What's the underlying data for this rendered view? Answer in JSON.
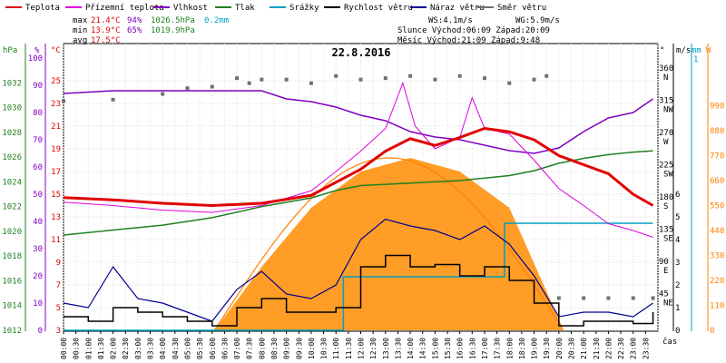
{
  "chart_data": {
    "type": "line",
    "title": "22.8.2016",
    "legend": [
      {
        "label": "Teplota",
        "color": "#e00000"
      },
      {
        "label": "Přízemní teplota",
        "color": "#e000e0"
      },
      {
        "label": "Vlhkost",
        "color": "#8000c0"
      },
      {
        "label": "Tlak",
        "color": "#208020"
      },
      {
        "label": "Srážky",
        "color": "#00a0c0"
      },
      {
        "label": "Rychlost větru",
        "color": "#000000"
      },
      {
        "label": "Náraz větru",
        "color": "#000090"
      },
      {
        "label": "Směr větru",
        "color": "#707070"
      }
    ],
    "stats": {
      "max_label": "max",
      "max_temp": "21.4°C",
      "max_hum": "94%",
      "max_press": "1026.5hPa",
      "rain": "0.2mm",
      "min_label": "min",
      "min_temp": "13.9°C",
      "min_hum": "65%",
      "min_press": "1019.9hPa",
      "avg_label": "avg",
      "avg_temp": "17.5°C"
    },
    "info": {
      "ws": "WS:4.1m/s",
      "wg": "WG:5.9m/s",
      "sun": "Slunce Východ:06:09  Západ:20:09",
      "moon": "Měsíc  Východ:21:09  Západ:9:48"
    },
    "axis_units": {
      "hpa": "hPa",
      "pct": "%",
      "degc": "°C",
      "deg": "°",
      "mm": "mm",
      "ms": "m/s",
      "w": "W",
      "time": "čas"
    },
    "axes": {
      "hpa": {
        "range": [
          1012,
          1034
        ],
        "ticks": [
          1012,
          1014,
          1016,
          1018,
          1020,
          1022,
          1024,
          1026,
          1028,
          1030,
          1032
        ]
      },
      "pct": {
        "range": [
          0,
          100
        ],
        "ticks": [
          0,
          5,
          10,
          15,
          20,
          25,
          30,
          35,
          40,
          45,
          50,
          55,
          60,
          65,
          70,
          75,
          80,
          85,
          90,
          95,
          100
        ]
      },
      "degc": {
        "range": [
          3,
          27
        ],
        "ticks": [
          3,
          5,
          7,
          9,
          11,
          13,
          15,
          17,
          19,
          21,
          23,
          25
        ]
      },
      "deg": {
        "range": [
          0,
          380
        ],
        "ticks": [
          "45 NE",
          "90 E",
          "135 SE",
          "180 S",
          "225 SW",
          "270 W",
          "315 NW",
          "360 N"
        ]
      },
      "mm": {
        "ticks": [
          "1"
        ]
      },
      "ms": {
        "range": [
          0,
          6
        ],
        "ticks": [
          0,
          1,
          2,
          3,
          4,
          5,
          6
        ]
      },
      "w": {
        "range": [
          0,
          1100
        ],
        "ticks": [
          0,
          110,
          220,
          330,
          440,
          550,
          660,
          770,
          880,
          990
        ]
      }
    },
    "x_ticks": [
      "00:00",
      "00:30",
      "01:00",
      "01:30",
      "02:00",
      "02:30",
      "03:00",
      "03:30",
      "04:00",
      "04:30",
      "05:00",
      "05:30",
      "06:00",
      "06:30",
      "07:00",
      "07:30",
      "08:00",
      "08:30",
      "09:00",
      "09:30",
      "10:00",
      "10:30",
      "11:00",
      "11:30",
      "12:00",
      "12:30",
      "13:00",
      "13:30",
      "14:00",
      "14:30",
      "15:00",
      "15:30",
      "16:00",
      "16:30",
      "17:00",
      "17:30",
      "18:00",
      "18:30",
      "19:00",
      "19:30",
      "20:00",
      "20:30",
      "21:00",
      "21:30",
      "22:00",
      "22:30",
      "23:00",
      "23:30"
    ],
    "series": [
      {
        "name": "Teplota",
        "color": "#e00000",
        "unit": "°C",
        "x": [
          0,
          2,
          4,
          6,
          8,
          10,
          12,
          13,
          14,
          15,
          16,
          17,
          18,
          19,
          20,
          21,
          22,
          23,
          23.8
        ],
        "values": [
          14.7,
          14.5,
          14.2,
          14.0,
          14.2,
          14.9,
          17.2,
          18.8,
          19.9,
          19.3,
          20.0,
          20.8,
          20.5,
          19.8,
          18.4,
          17.6,
          16.8,
          15.0,
          14.0
        ]
      },
      {
        "name": "Přízemní teplota",
        "color": "#e000e0",
        "unit": "°C",
        "x": [
          0,
          2,
          4,
          6,
          8,
          10,
          11,
          12,
          13,
          13.7,
          14.2,
          15,
          16,
          16.5,
          17,
          18,
          19,
          20,
          21,
          22,
          23,
          23.8
        ],
        "values": [
          14.3,
          14.0,
          13.6,
          13.4,
          14.0,
          15.3,
          17.0,
          18.8,
          20.8,
          24.8,
          21.0,
          19.0,
          20.0,
          23.5,
          20.8,
          20.3,
          18.0,
          15.5,
          14.0,
          12.4,
          11.8,
          11.2
        ]
      },
      {
        "name": "Vlhkost",
        "color": "#8000c0",
        "unit": "%",
        "x": [
          0,
          2,
          4,
          6,
          8,
          9,
          10,
          11,
          12,
          13,
          14,
          15,
          16,
          17,
          18,
          19,
          20,
          21,
          22,
          23,
          23.8
        ],
        "values": [
          87,
          88,
          88,
          88,
          88,
          85,
          84,
          82,
          79,
          77,
          73,
          71,
          70,
          68,
          66,
          65,
          67,
          73,
          78,
          80,
          85
        ]
      },
      {
        "name": "Tlak",
        "color": "#208020",
        "unit": "hPa",
        "x": [
          0,
          2,
          4,
          6,
          8,
          10,
          11,
          12,
          13,
          14,
          15,
          16,
          17,
          18,
          19,
          20,
          21,
          22,
          23,
          23.8
        ],
        "values": [
          1019.7,
          1020.1,
          1020.5,
          1021.1,
          1022.0,
          1022.7,
          1023.3,
          1023.7,
          1023.8,
          1023.9,
          1024.0,
          1024.1,
          1024.3,
          1024.5,
          1024.9,
          1025.5,
          1025.9,
          1026.2,
          1026.4,
          1026.5
        ]
      },
      {
        "name": "Srážky",
        "color": "#00a0c0",
        "unit": "mm",
        "x": [
          0,
          11.3,
          11.3,
          17.8,
          17.8,
          23.8
        ],
        "values": [
          0,
          0,
          0.1,
          0.1,
          0.2,
          0.2
        ]
      },
      {
        "name": "Sluneční záření",
        "color": "#ff7f00",
        "unit": "W",
        "x": [
          6.1,
          8,
          10,
          12,
          14,
          16,
          18,
          20.2
        ],
        "values": [
          0,
          280,
          540,
          700,
          760,
          700,
          540,
          0
        ]
      },
      {
        "name": "Rychlost větru",
        "color": "#000000",
        "unit": "m/s",
        "x": [
          0,
          1,
          2,
          3,
          4,
          5,
          6,
          7,
          8,
          9,
          10,
          11,
          12,
          13,
          14,
          15,
          16,
          17,
          18,
          19,
          20,
          21,
          22,
          23,
          23.8
        ],
        "values": [
          0.6,
          0.4,
          1.0,
          0.8,
          0.6,
          0.4,
          0.2,
          1.0,
          1.4,
          0.8,
          0.8,
          1.0,
          2.8,
          3.3,
          2.8,
          2.9,
          2.4,
          2.8,
          2.2,
          1.2,
          0.2,
          0.4,
          0.4,
          0.3,
          0.8
        ]
      },
      {
        "name": "Náraz větru",
        "color": "#000090",
        "unit": "m/s",
        "x": [
          0,
          1,
          2,
          3,
          4,
          5,
          6,
          7,
          8,
          9,
          10,
          11,
          12,
          13,
          14,
          15,
          16,
          17,
          18,
          19,
          20,
          21,
          22,
          23,
          23.8
        ],
        "values": [
          1.2,
          1.0,
          2.8,
          1.4,
          1.2,
          0.8,
          0.4,
          1.8,
          2.6,
          1.6,
          1.4,
          2.0,
          4.0,
          4.9,
          4.6,
          4.4,
          4.0,
          4.6,
          3.8,
          2.4,
          0.6,
          0.8,
          0.8,
          0.6,
          1.2
        ]
      },
      {
        "name": "Směr větru",
        "color": "#707070",
        "unit": "°",
        "x": [
          0,
          2,
          4,
          5,
          6,
          7,
          7.5,
          8,
          9,
          10,
          11,
          12,
          13,
          14,
          15,
          16,
          17,
          18,
          19,
          19.5,
          20,
          21,
          22,
          23,
          23.8
        ],
        "values": [
          320,
          322,
          330,
          338,
          340,
          352,
          345,
          350,
          350,
          345,
          355,
          350,
          352,
          355,
          350,
          355,
          352,
          345,
          350,
          355,
          45,
          45,
          45,
          45,
          45
        ]
      }
    ]
  }
}
